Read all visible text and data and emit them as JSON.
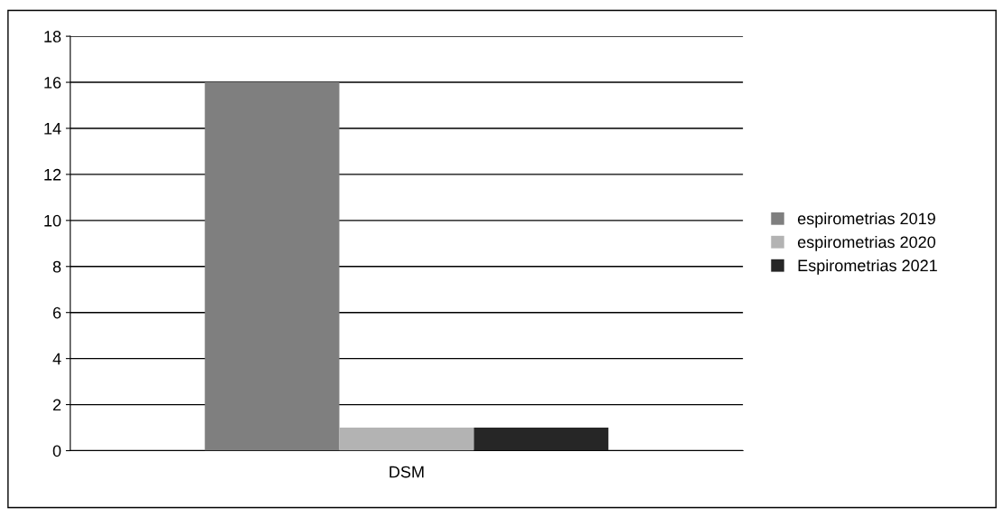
{
  "chart_data": {
    "type": "bar",
    "categories": [
      "DSM"
    ],
    "series": [
      {
        "name": "espirometrias 2019",
        "color": "#7f7f7f",
        "values": [
          16
        ]
      },
      {
        "name": "espirometrias 2020",
        "color": "#b3b3b3",
        "values": [
          1
        ]
      },
      {
        "name": "Espirometrias 2021",
        "color": "#262626",
        "values": [
          1
        ]
      }
    ],
    "ylim": [
      0,
      18
    ],
    "yticks": [
      0,
      2,
      4,
      6,
      8,
      10,
      12,
      14,
      16,
      18
    ],
    "grid": "y",
    "legend": "right"
  }
}
